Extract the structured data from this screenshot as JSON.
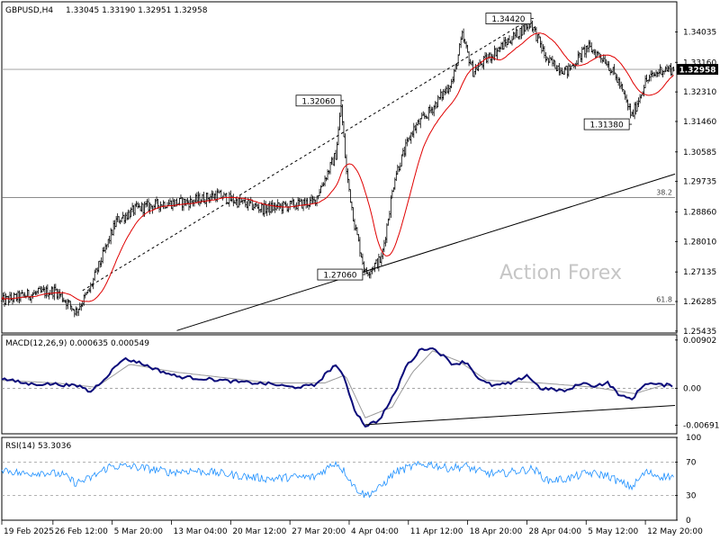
{
  "chart_data": [
    {
      "type": "candlestick",
      "symbol": "GBPUSD,H4",
      "ohlc_text": "1.33045 1.33190 1.32951 1.32958",
      "ylim": [
        1.2538,
        1.349
      ],
      "y_ticks": [
        "1.34035",
        "1.33160",
        "1.32310",
        "1.31460",
        "1.30585",
        "1.29735",
        "1.28860",
        "1.28010",
        "1.27135",
        "1.26285",
        "1.25435"
      ],
      "current_price": "1.32958",
      "x_ticks": [
        {
          "label": "19 Feb 2025",
          "bar": 0
        },
        {
          "label": "26 Feb 12:00",
          "bar": 38
        },
        {
          "label": "5 Mar 20:00",
          "bar": 82
        },
        {
          "label": "13 Mar 04:00",
          "bar": 126
        },
        {
          "label": "20 Mar 12:00",
          "bar": 170
        },
        {
          "label": "27 Mar 20:00",
          "bar": 214
        },
        {
          "label": "4 Apr 04:00",
          "bar": 258
        },
        {
          "label": "11 Apr 12:00",
          "bar": 302
        },
        {
          "label": "18 Apr 20:00",
          "bar": 346
        },
        {
          "label": "28 Apr 04:00",
          "bar": 390
        },
        {
          "label": "5 May 12:00",
          "bar": 434
        },
        {
          "label": "12 May 20:00",
          "bar": 478
        }
      ],
      "price_path": [
        [
          0,
          1.263
        ],
        [
          20,
          1.2648
        ],
        [
          40,
          1.266
        ],
        [
          55,
          1.26
        ],
        [
          65,
          1.266
        ],
        [
          75,
          1.276
        ],
        [
          85,
          1.286
        ],
        [
          100,
          1.2895
        ],
        [
          120,
          1.291
        ],
        [
          140,
          1.2915
        ],
        [
          160,
          1.2935
        ],
        [
          175,
          1.2915
        ],
        [
          195,
          1.2895
        ],
        [
          215,
          1.2905
        ],
        [
          232,
          1.2915
        ],
        [
          248,
          1.305
        ],
        [
          252,
          1.319
        ],
        [
          256,
          1.3
        ],
        [
          262,
          1.285
        ],
        [
          270,
          1.271
        ],
        [
          282,
          1.275
        ],
        [
          292,
          1.299
        ],
        [
          305,
          1.312
        ],
        [
          320,
          1.3185
        ],
        [
          335,
          1.3265
        ],
        [
          342,
          1.339
        ],
        [
          350,
          1.329
        ],
        [
          360,
          1.3325
        ],
        [
          380,
          1.339
        ],
        [
          393,
          1.343
        ],
        [
          405,
          1.332
        ],
        [
          420,
          1.329
        ],
        [
          435,
          1.336
        ],
        [
          448,
          1.3325
        ],
        [
          458,
          1.326
        ],
        [
          468,
          1.316
        ],
        [
          478,
          1.326
        ],
        [
          490,
          1.3296
        ]
      ],
      "price_labels": [
        {
          "text": "1.34420",
          "bar": 393,
          "price": 1.3442
        },
        {
          "text": "1.32060",
          "bar": 252,
          "price": 1.3206
        },
        {
          "text": "1.31380",
          "bar": 466,
          "price": 1.3138
        },
        {
          "text": "1.27060",
          "bar": 268,
          "price": 1.2706
        }
      ],
      "fib_levels": [
        {
          "label": "38.2",
          "price": 1.2927
        },
        {
          "label": "61.8",
          "price": 1.262
        }
      ],
      "trendlines": [
        {
          "style": "dashed",
          "from": [
            60,
            1.266
          ],
          "to": [
            393,
            1.3442
          ]
        },
        {
          "style": "solid",
          "from": [
            130,
            1.2545
          ],
          "to": [
            500,
            1.2995
          ]
        }
      ],
      "watermark": "Action Forex"
    },
    {
      "type": "line",
      "title": "MACD(12,26,9) 0.000635 0.000549",
      "ylim": [
        -0.0085,
        0.01
      ],
      "y_ticks": [
        "0.00902",
        "0.00",
        "-0.006915"
      ],
      "macd_path": [
        [
          0,
          0.0018
        ],
        [
          20,
          0.0008
        ],
        [
          40,
          0.0008
        ],
        [
          60,
          0.0003
        ],
        [
          65,
          -0.0008
        ],
        [
          75,
          0.0015
        ],
        [
          90,
          0.0055
        ],
        [
          100,
          0.005
        ],
        [
          115,
          0.0035
        ],
        [
          130,
          0.0022
        ],
        [
          150,
          0.0018
        ],
        [
          175,
          0.0012
        ],
        [
          200,
          0.0008
        ],
        [
          215,
          0.0002
        ],
        [
          232,
          0.0005
        ],
        [
          248,
          0.0045
        ],
        [
          255,
          0.0015
        ],
        [
          262,
          -0.004
        ],
        [
          270,
          -0.007
        ],
        [
          280,
          -0.006
        ],
        [
          292,
          -0.001
        ],
        [
          300,
          0.004
        ],
        [
          312,
          0.0075
        ],
        [
          322,
          0.0073
        ],
        [
          335,
          0.0045
        ],
        [
          345,
          0.005
        ],
        [
          355,
          0.0015
        ],
        [
          365,
          0.0005
        ],
        [
          380,
          0.001
        ],
        [
          390,
          0.0025
        ],
        [
          400,
          0.0
        ],
        [
          420,
          -0.0005
        ],
        [
          430,
          0.001
        ],
        [
          440,
          0.0005
        ],
        [
          450,
          0.001
        ],
        [
          460,
          -0.0015
        ],
        [
          468,
          -0.002
        ],
        [
          478,
          0.001
        ],
        [
          490,
          0.0006
        ]
      ],
      "signal_path": [
        [
          0,
          0.0015
        ],
        [
          40,
          0.001
        ],
        [
          70,
          0.0002
        ],
        [
          95,
          0.0045
        ],
        [
          130,
          0.003
        ],
        [
          200,
          0.001
        ],
        [
          240,
          0.001
        ],
        [
          255,
          0.0025
        ],
        [
          270,
          -0.0055
        ],
        [
          290,
          -0.0035
        ],
        [
          305,
          0.003
        ],
        [
          320,
          0.007
        ],
        [
          340,
          0.005
        ],
        [
          360,
          0.0015
        ],
        [
          400,
          0.001
        ],
        [
          440,
          0.0002
        ],
        [
          470,
          -0.001
        ],
        [
          490,
          0.0005
        ]
      ],
      "trendline": {
        "from": [
          270,
          -0.0068
        ],
        "to": [
          500,
          -0.0032
        ]
      }
    },
    {
      "type": "line",
      "title": "RSI(14) 53.3036",
      "ylim": [
        0,
        100
      ],
      "y_ticks": [
        "100",
        "70",
        "30",
        "0"
      ],
      "rsi_path": [
        [
          0,
          62
        ],
        [
          15,
          56
        ],
        [
          30,
          58
        ],
        [
          45,
          55
        ],
        [
          55,
          45
        ],
        [
          65,
          50
        ],
        [
          80,
          65
        ],
        [
          95,
          65
        ],
        [
          110,
          62
        ],
        [
          125,
          58
        ],
        [
          140,
          60
        ],
        [
          155,
          58
        ],
        [
          170,
          55
        ],
        [
          185,
          52
        ],
        [
          200,
          50
        ],
        [
          215,
          52
        ],
        [
          232,
          52
        ],
        [
          248,
          70
        ],
        [
          255,
          58
        ],
        [
          262,
          40
        ],
        [
          270,
          30
        ],
        [
          280,
          38
        ],
        [
          292,
          58
        ],
        [
          305,
          65
        ],
        [
          318,
          68
        ],
        [
          330,
          63
        ],
        [
          345,
          65
        ],
        [
          358,
          57
        ],
        [
          370,
          56
        ],
        [
          385,
          60
        ],
        [
          395,
          62
        ],
        [
          405,
          48
        ],
        [
          420,
          50
        ],
        [
          435,
          57
        ],
        [
          450,
          54
        ],
        [
          460,
          45
        ],
        [
          468,
          40
        ],
        [
          478,
          58
        ],
        [
          490,
          53
        ]
      ]
    }
  ]
}
